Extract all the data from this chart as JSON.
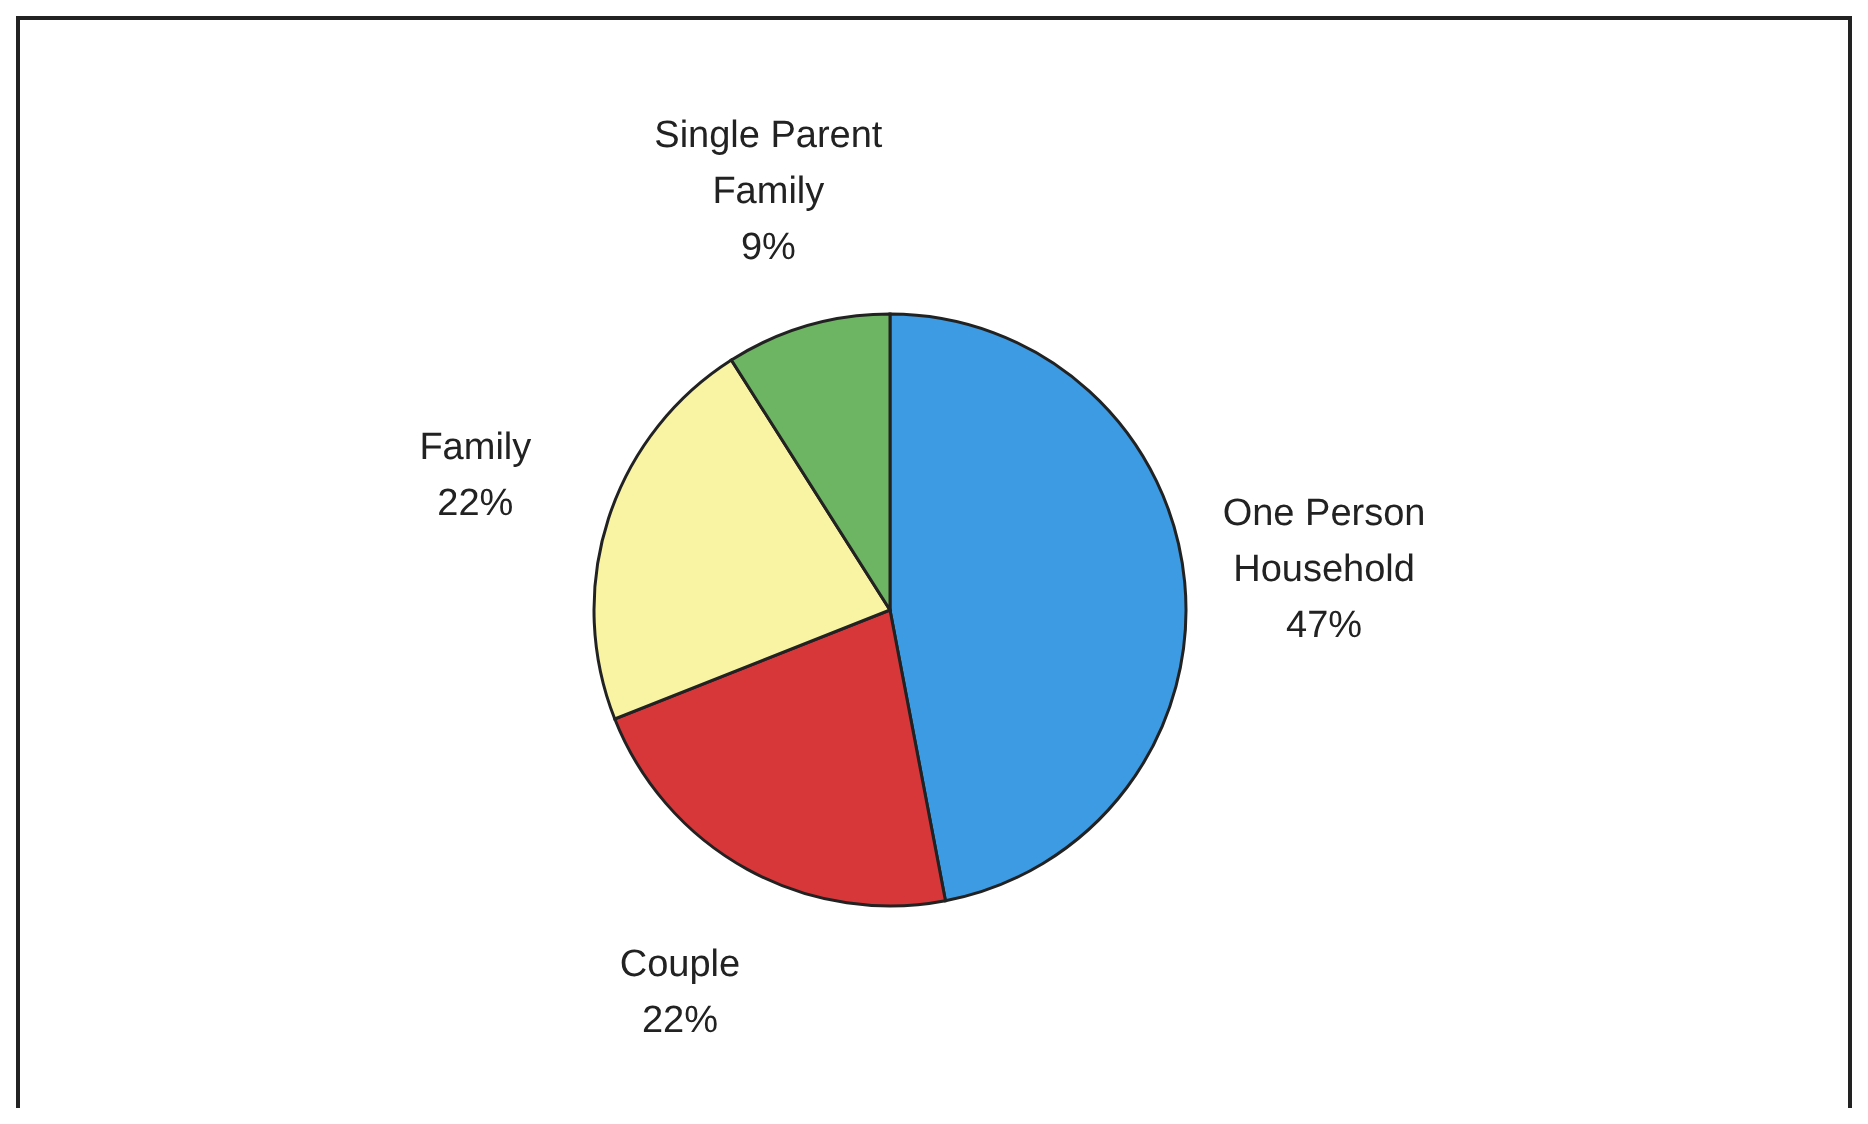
{
  "chart_data": {
    "type": "pie",
    "categories": [
      "One Person Household",
      "Couple",
      "Family",
      "Single Parent Family"
    ],
    "values": [
      47,
      22,
      22,
      9
    ],
    "colors": [
      "#3d9be3",
      "#d8373a",
      "#f8f4a3",
      "#6db562"
    ],
    "value_labels": [
      "47%",
      "22%",
      "22%",
      "9%"
    ]
  }
}
